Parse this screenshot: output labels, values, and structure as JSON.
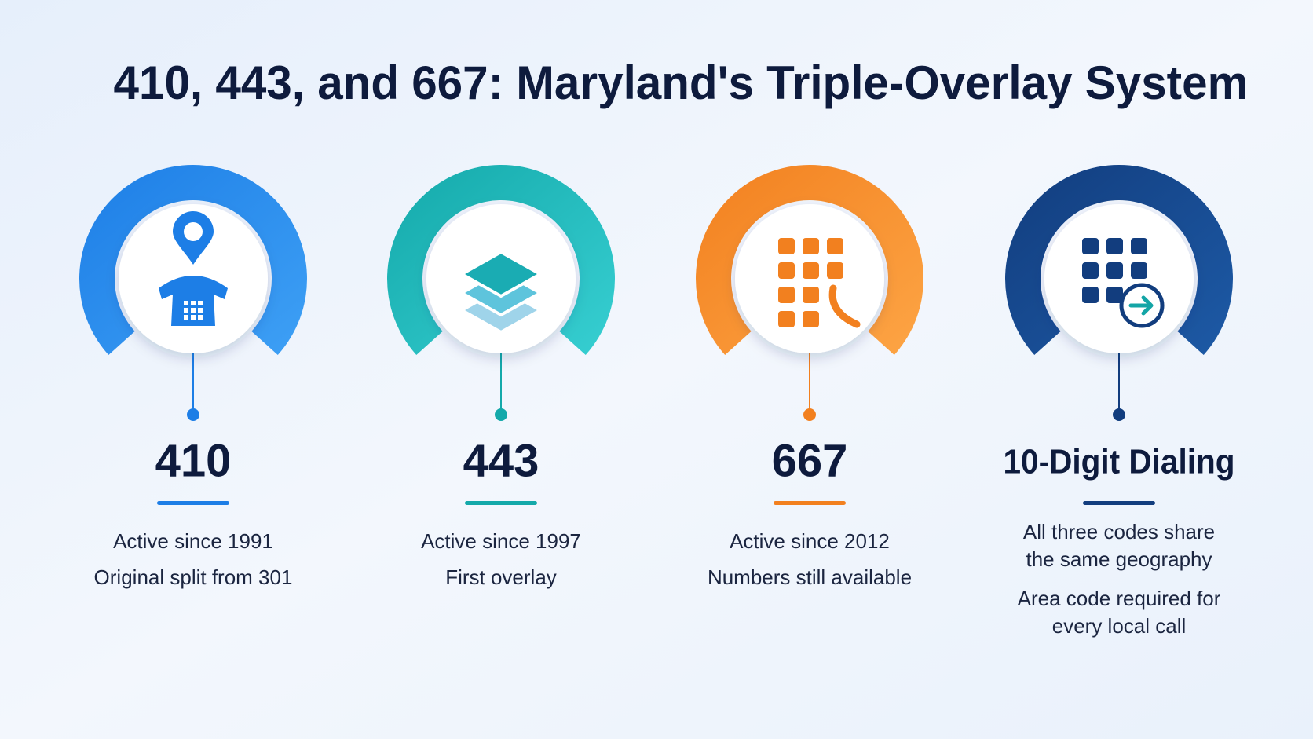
{
  "header": {
    "title": "410, 443, and 667: Maryland's Triple-Overlay System"
  },
  "items": [
    {
      "heading": "410",
      "paragraphs": [
        [
          "Active since 1991"
        ],
        [
          "Original split from 301"
        ]
      ]
    },
    {
      "heading": "443",
      "paragraphs": [
        [
          "Active since 1997"
        ],
        [
          "First overlay"
        ]
      ]
    },
    {
      "heading": "667",
      "paragraphs": [
        [
          "Active since 2012"
        ],
        [
          "Numbers still available"
        ]
      ]
    },
    {
      "heading": "10-Digit Dialing",
      "paragraphs": [
        [
          "All three codes share",
          "the same geography"
        ],
        [
          "Area code required for",
          "every local call"
        ]
      ]
    }
  ]
}
